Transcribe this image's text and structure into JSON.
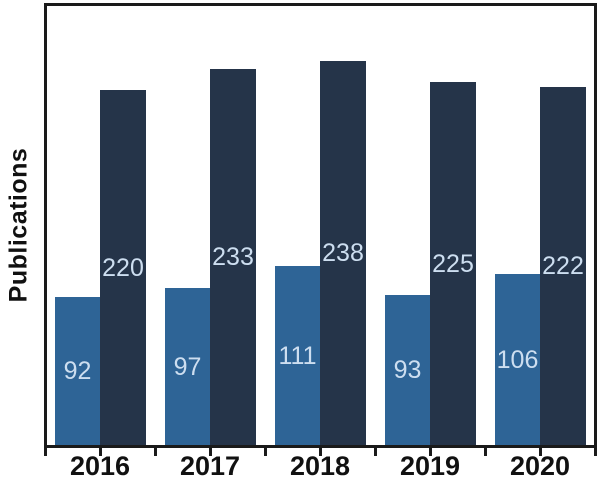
{
  "figure": {
    "background": "#ffffff"
  },
  "chart_data": {
    "type": "bar",
    "title": "",
    "xlabel": "",
    "ylabel": "Publications",
    "categories": [
      "2016",
      "2017",
      "2018",
      "2019",
      "2020"
    ],
    "series": [
      {
        "name": "series-light-blue",
        "color": "#2e6496",
        "values": [
          92,
          97,
          111,
          93,
          106
        ]
      },
      {
        "name": "series-dark-navy",
        "color": "#253449",
        "values": [
          220,
          233,
          238,
          225,
          222
        ]
      }
    ],
    "value_labels_shown": true,
    "value_label_color": "#cddef0",
    "axis_color": "#1a1a1a",
    "tick_label_color": "#111111",
    "ylim": [
      0,
      272
    ],
    "grid": false,
    "legend": "none"
  }
}
